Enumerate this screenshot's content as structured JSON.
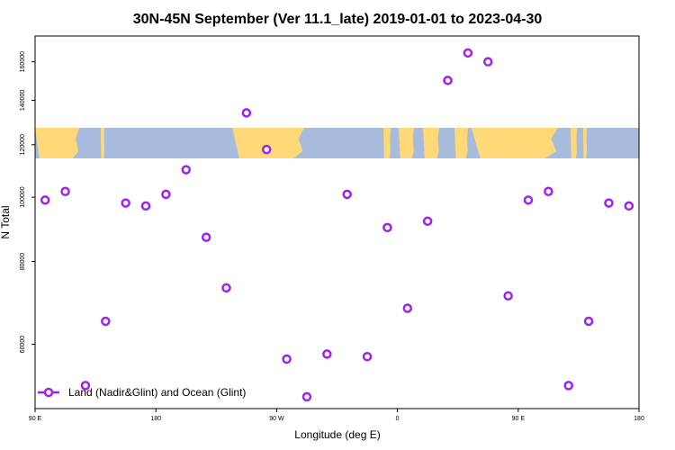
{
  "chart_data": {
    "type": "scatter",
    "title": "30N-45N September (Ver 11.1_late)   2019-01-01 to 2023-04-30",
    "xlabel": "Longitude (deg E)",
    "ylabel": "N Total",
    "x_ticks": [
      {
        "value": 90,
        "label": "90 E"
      },
      {
        "value": 180,
        "label": "180"
      },
      {
        "value": 270,
        "label": "90 W"
      },
      {
        "value": 360,
        "label": "0"
      },
      {
        "value": 450,
        "label": "90 E"
      },
      {
        "value": 540,
        "label": "180"
      }
    ],
    "y_ticks": [
      {
        "value": 60000,
        "label": "60000"
      },
      {
        "value": 80000,
        "label": "80000"
      },
      {
        "value": 100000,
        "label": "100000"
      },
      {
        "value": 120000,
        "label": "120000"
      },
      {
        "value": 140000,
        "label": "140000"
      },
      {
        "value": 160000,
        "label": "160000"
      }
    ],
    "xlim": [
      90,
      540
    ],
    "ylim": [
      48000,
      175000
    ],
    "y_scale": "log",
    "grid": false,
    "legend_position": "bottom-left",
    "series": [
      {
        "name": "Land (Nadir&Glint) and Ocean (Glint)",
        "color": "#a020f0",
        "marker": "open-circle",
        "x": [
          97.5,
          112.5,
          127.5,
          142.5,
          157.5,
          172.5,
          187.5,
          202.5,
          217.5,
          232.5,
          247.5,
          262.5,
          277.5,
          292.5,
          307.5,
          322.5,
          337.5,
          352.5,
          367.5,
          382.5,
          397.5,
          412.5,
          427.5,
          442.5,
          457.5,
          472.5,
          487.5,
          502.5,
          517.5,
          532.5
        ],
        "y": [
          99000,
          102000,
          52000,
          65000,
          98000,
          97000,
          101000,
          110000,
          87000,
          73000,
          134000,
          118000,
          57000,
          50000,
          58000,
          101000,
          57500,
          90000,
          68000,
          92000,
          150000,
          165000,
          160000,
          71000,
          99000,
          102000,
          52000,
          65000,
          98000,
          97000
        ]
      }
    ],
    "map_band": {
      "lat_range": "30N-45N",
      "land_color": "#ffd978",
      "ocean_color": "#a7bcdc"
    }
  }
}
